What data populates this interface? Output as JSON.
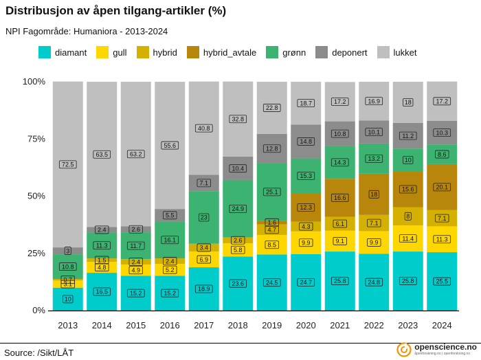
{
  "chart_data": {
    "type": "bar",
    "stacked": true,
    "title": "Distribusjon av åpen tilgang-artikler (%)",
    "subtitle": "NPI Fagområde: Humaniora - 2013-2024",
    "xlabel": "",
    "ylabel": "",
    "ylim": [
      0,
      100
    ],
    "y_ticks": [
      "0%",
      "25%",
      "50%",
      "75%",
      "100%"
    ],
    "categories": [
      "2013",
      "2014",
      "2015",
      "2016",
      "2017",
      "2018",
      "2019",
      "2020",
      "2021",
      "2022",
      "2023",
      "2024"
    ],
    "series": [
      {
        "name": "diamant",
        "color": "#00CCCC",
        "values": [
          10,
          16.5,
          15.2,
          15.2,
          18.9,
          23.6,
          24.5,
          24.7,
          25.8,
          24.8,
          25.8,
          25.5
        ]
      },
      {
        "name": "gull",
        "color": "#FFD700",
        "values": [
          3.1,
          4.8,
          4.9,
          5.2,
          6.9,
          5.8,
          8.5,
          9.9,
          9.1,
          9.9,
          11.4,
          11.3
        ]
      },
      {
        "name": "hybrid",
        "color": "#D4B000",
        "values": [
          0.7,
          1.5,
          2.4,
          2.4,
          3.4,
          2.6,
          4.7,
          4.3,
          6.1,
          7.1,
          8,
          7.1
        ]
      },
      {
        "name": "hybrid_avtale",
        "color": "#B8860B",
        "values": [
          0,
          0,
          0,
          0,
          0,
          0,
          1.6,
          12.3,
          16.6,
          18,
          15.6,
          20.1
        ]
      },
      {
        "name": "grønn",
        "color": "#3CB371",
        "values": [
          10.8,
          11.3,
          11.7,
          16.1,
          23,
          24.9,
          25.1,
          15.3,
          14.3,
          13.2,
          10,
          8.6
        ]
      },
      {
        "name": "deponert",
        "color": "#8C8C8C",
        "values": [
          3,
          2.4,
          2.6,
          5.5,
          7.1,
          10.4,
          12.8,
          14.8,
          10.8,
          10.1,
          11.2,
          10.3
        ]
      },
      {
        "name": "lukket",
        "color": "#BFBFBF",
        "values": [
          72.5,
          63.5,
          63.2,
          55.6,
          40.8,
          32.8,
          22.8,
          18.7,
          17.2,
          16.9,
          18,
          17.2
        ]
      }
    ],
    "legend_position": "top"
  },
  "footer": {
    "source": "Source: /Sikt/LÅT",
    "logo_name": "openscience.no",
    "logo_sub": "åpenforskning.no | openforskning.no"
  }
}
